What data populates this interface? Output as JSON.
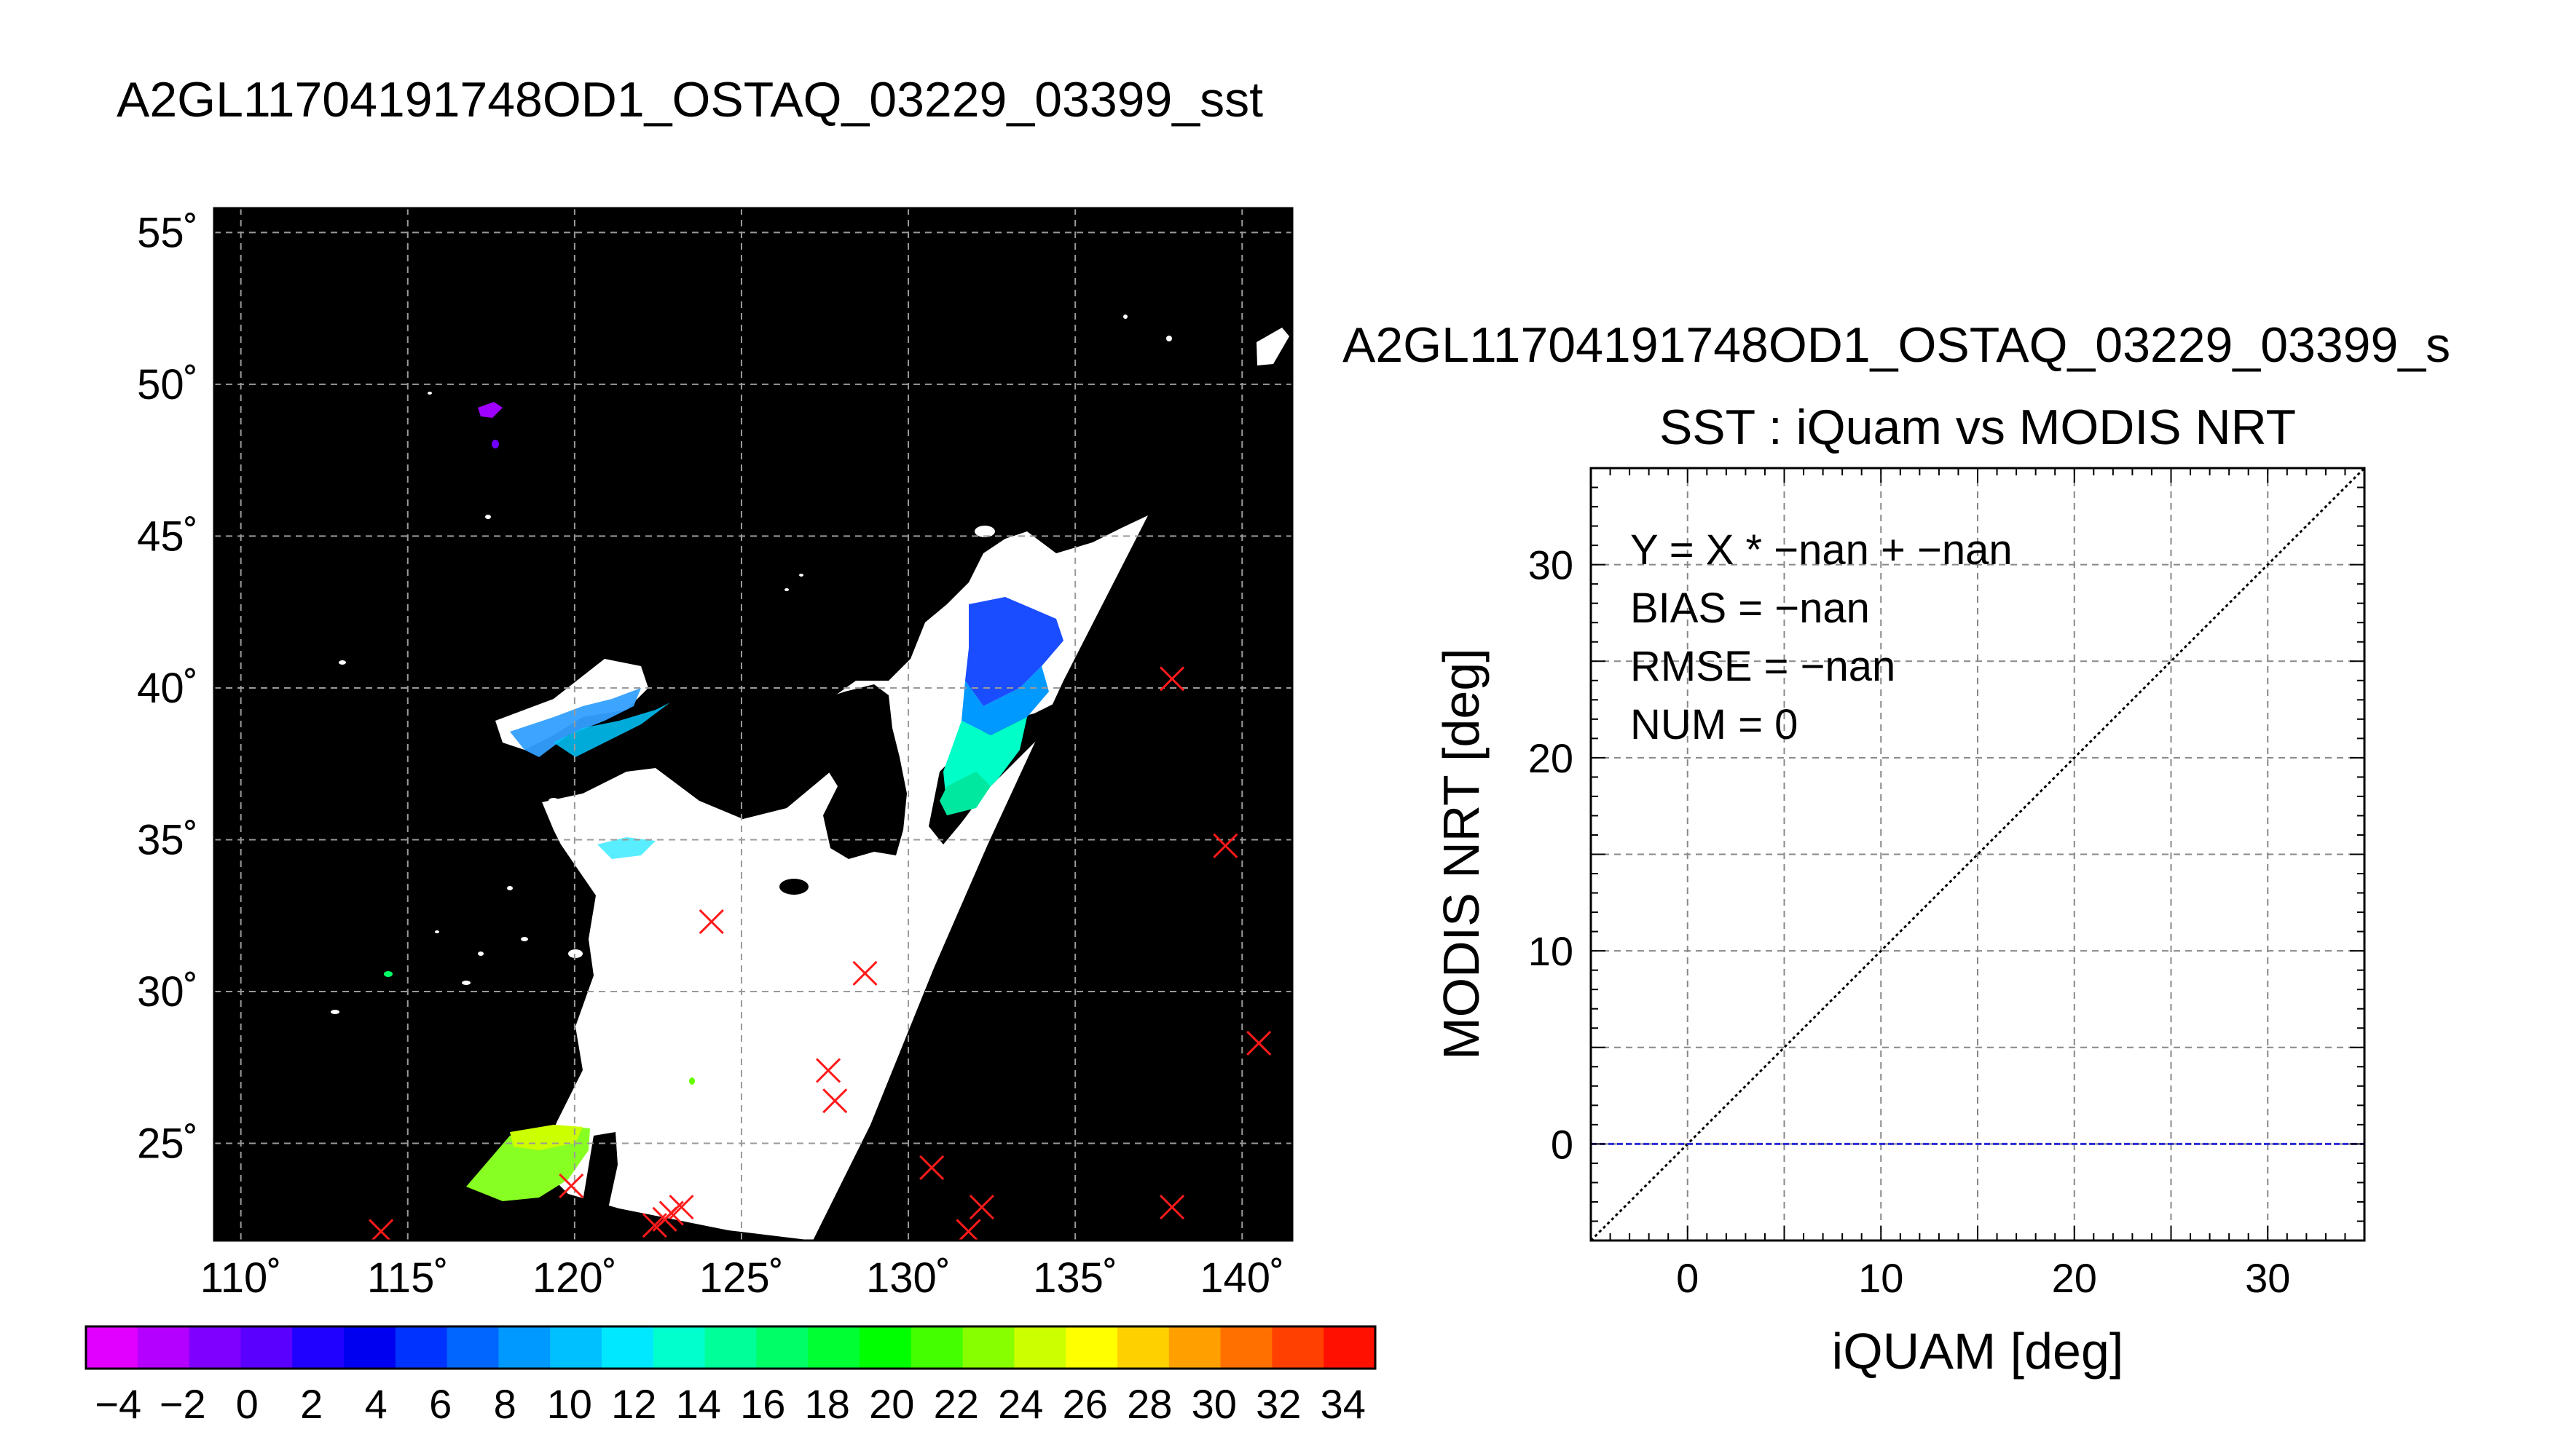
{
  "chart_data": [
    {
      "type": "map",
      "title": "A2GL11704191748OD1_OSTAQ_03229_03399_sst",
      "x_ticks": [
        "110˚",
        "115˚",
        "120˚",
        "125˚",
        "130˚",
        "135˚",
        "140˚"
      ],
      "y_ticks": [
        "25˚",
        "30˚",
        "35˚",
        "40˚",
        "45˚",
        "50˚",
        "55˚"
      ],
      "lon_range": [
        109.2,
        141.5
      ],
      "lat_range": [
        21.8,
        55.8
      ],
      "grid": true,
      "background": "#000000",
      "swath_fill": "#ffffff",
      "marker": "x",
      "marker_color": "#ff1a1a",
      "markers": [
        {
          "lon": 114.2,
          "lat": 22.1
        },
        {
          "lon": 119.9,
          "lat": 23.6
        },
        {
          "lon": 122.4,
          "lat": 22.3
        },
        {
          "lon": 122.7,
          "lat": 22.5
        },
        {
          "lon": 122.9,
          "lat": 22.7
        },
        {
          "lon": 123.2,
          "lat": 22.9
        },
        {
          "lon": 124.1,
          "lat": 32.3
        },
        {
          "lon": 127.6,
          "lat": 27.4
        },
        {
          "lon": 127.8,
          "lat": 26.4
        },
        {
          "lon": 128.7,
          "lat": 30.6
        },
        {
          "lon": 130.7,
          "lat": 24.2
        },
        {
          "lon": 131.8,
          "lat": 22.1
        },
        {
          "lon": 132.2,
          "lat": 22.9
        },
        {
          "lon": 137.9,
          "lat": 40.3
        },
        {
          "lon": 137.9,
          "lat": 22.9
        },
        {
          "lon": 139.5,
          "lat": 34.8
        },
        {
          "lon": 140.5,
          "lat": 28.3
        }
      ]
    },
    {
      "type": "colorbar",
      "tick_labels": [
        "−4",
        "−2",
        "0",
        "2",
        "4",
        "6",
        "8",
        "10",
        "12",
        "14",
        "16",
        "18",
        "20",
        "22",
        "24",
        "26",
        "28",
        "30",
        "32",
        "34"
      ],
      "range": [
        -5,
        35
      ],
      "colors": [
        "#e100ff",
        "#b400ff",
        "#8000ff",
        "#5a00ff",
        "#2000ff",
        "#0000f0",
        "#0033ff",
        "#0066ff",
        "#0099ff",
        "#00c0ff",
        "#00e8ff",
        "#00ffcc",
        "#00ff99",
        "#00ff66",
        "#00ff33",
        "#00ff00",
        "#44ff00",
        "#88ff00",
        "#ccff00",
        "#ffff00",
        "#ffd000",
        "#ffa000",
        "#ff7000",
        "#ff4000",
        "#ff1000"
      ]
    },
    {
      "type": "scatter",
      "header": "A2GL11704191748OD1_OSTAQ_03229_03399_s",
      "title": "SST : iQuam vs MODIS NRT",
      "xlabel": "iQUAM [deg]",
      "ylabel": "MODIS NRT [deg]",
      "xlim": [
        -5,
        35
      ],
      "ylim": [
        -5,
        35
      ],
      "x_ticks": [
        0,
        10,
        20,
        30
      ],
      "y_ticks": [
        0,
        10,
        20,
        30
      ],
      "grid": true,
      "annotations": [
        "Y = X * −nan + −nan",
        "BIAS = −nan",
        "RMSE = −nan",
        "NUM = 0"
      ],
      "lines": [
        {
          "style": "dotted",
          "color": "#000000",
          "points": [
            [
              -5,
              -5
            ],
            [
              35,
              35
            ]
          ]
        },
        {
          "style": "dashed",
          "color": "#2b2bd6",
          "points": [
            [
              -5,
              0
            ],
            [
              35,
              0
            ]
          ]
        }
      ],
      "points": []
    }
  ]
}
